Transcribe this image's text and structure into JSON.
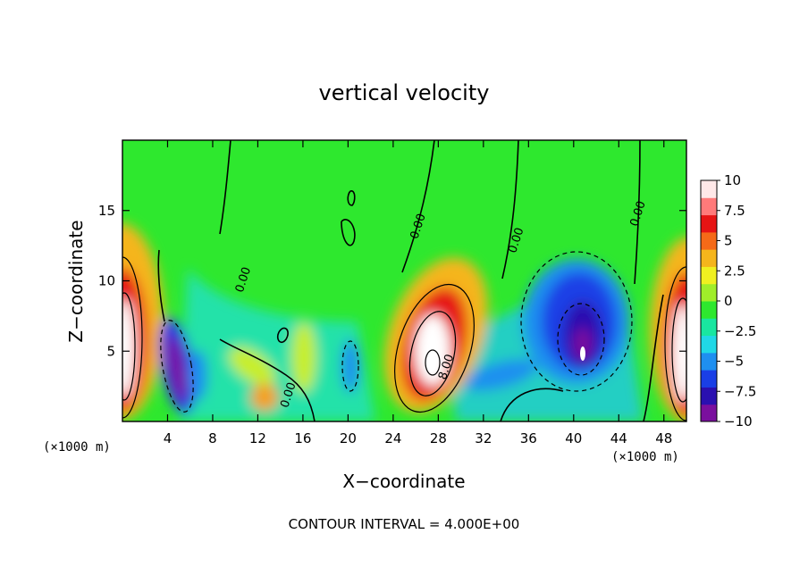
{
  "chart_data": {
    "type": "heatmap",
    "title": "vertical velocity",
    "xlabel": "X−coordinate",
    "ylabel": "Z−coordinate",
    "x_unit": "(×1000 m)",
    "xlim": [
      0,
      50
    ],
    "ylim": [
      0,
      20
    ],
    "x_ticks": [
      4,
      8,
      12,
      16,
      20,
      24,
      28,
      32,
      36,
      40,
      44,
      48
    ],
    "y_ticks": [
      5,
      10,
      15
    ],
    "colorbar": {
      "range": [
        -10,
        10
      ],
      "ticks": [
        {
          "value": 10,
          "label": "10"
        },
        {
          "value": 7.5,
          "label": "7.5"
        },
        {
          "value": 5,
          "label": "5"
        },
        {
          "value": 2.5,
          "label": "2.5"
        },
        {
          "value": 0,
          "label": "0"
        },
        {
          "value": -2.5,
          "label": "−2.5"
        },
        {
          "value": -5,
          "label": "−5"
        },
        {
          "value": -7.5,
          "label": "−7.5"
        },
        {
          "value": -10,
          "label": "−10"
        }
      ],
      "colors": [
        "#7a0f9e",
        "#2a10b0",
        "#1a3fe6",
        "#1e8ff0",
        "#20d8e6",
        "#19e6a0",
        "#2ee82e",
        "#a0ee2a",
        "#f0f020",
        "#f5b51c",
        "#f56a18",
        "#e61414",
        "#ff7a7a",
        "#ffe8e8"
      ]
    },
    "contour_labels": [
      {
        "x": 11,
        "z": 10.0,
        "text": "0.00"
      },
      {
        "x": 15,
        "z": 1.8,
        "text": "0.00"
      },
      {
        "x": 26.5,
        "z": 13.8,
        "text": "0.00"
      },
      {
        "x": 35.2,
        "z": 12.8,
        "text": "0.00"
      },
      {
        "x": 46.0,
        "z": 14.7,
        "text": "0.00"
      },
      {
        "x": 29.0,
        "z": 3.8,
        "text": "8.00"
      }
    ],
    "contour_interval_text": "CONTOUR INTERVAL =  4.000E+00"
  }
}
